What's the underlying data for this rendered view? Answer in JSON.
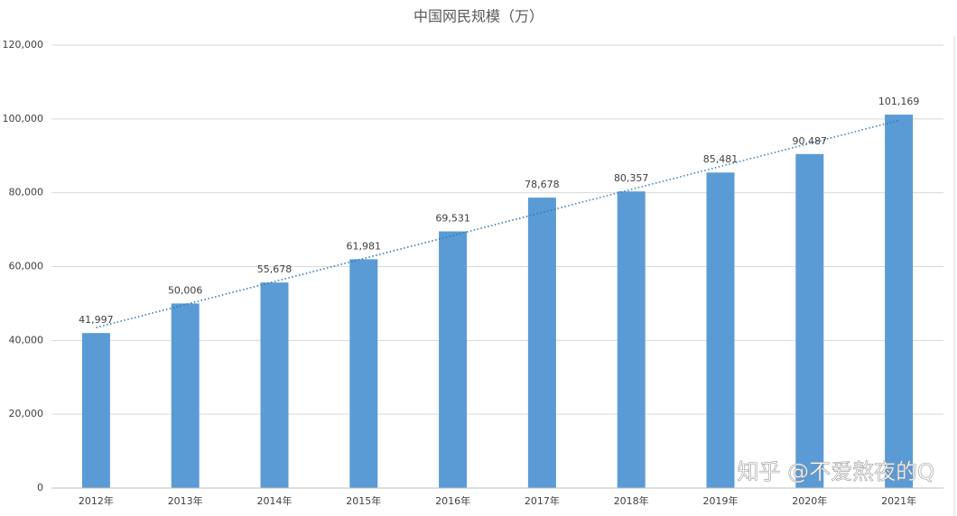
{
  "chart_data": {
    "type": "bar",
    "title": "中国网民规模（万）",
    "categories": [
      "2012年",
      "2013年",
      "2014年",
      "2015年",
      "2016年",
      "2017年",
      "2018年",
      "2019年",
      "2020年",
      "2021年"
    ],
    "values": [
      41997,
      50006,
      55678,
      61981,
      69531,
      78678,
      80357,
      85481,
      90487,
      101169
    ],
    "value_labels": [
      "41,997",
      "50,006",
      "55,678",
      "61,981",
      "69,531",
      "78,678",
      "80,357",
      "85,481",
      "90,487",
      "101,169"
    ],
    "color": "#5b9bd5",
    "trendline": true,
    "trendline_color": "#2e75b6",
    "ylim": [
      0,
      120000
    ],
    "yticks": [
      0,
      {
        "value": 20000,
        "label": "20,000"
      },
      {
        "value": 40000,
        "label": "40,000"
      },
      {
        "value": 60000,
        "label": "60,000"
      },
      {
        "value": 80000,
        "label": "80,000"
      },
      {
        "value": 100000,
        "label": "100,000"
      },
      {
        "value": 120000,
        "label": "120,000"
      }
    ],
    "grid": true
  },
  "watermark": "知乎 @不爱熬夜的Q"
}
